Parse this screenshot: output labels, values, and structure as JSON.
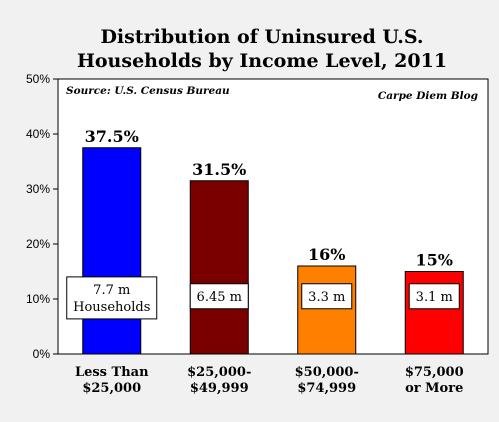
{
  "chart_data": {
    "type": "bar",
    "title_lines": [
      "Distribution of Uninsured U.S.",
      "Households by Income Level, 2011"
    ],
    "source_note": "Source: U.S. Census Bureau",
    "credit_note": "Carpe Diem Blog",
    "categories": [
      [
        "Less Than",
        "$25,000"
      ],
      [
        "$25,000-",
        "$49,999"
      ],
      [
        "$50,000-",
        "$74,999"
      ],
      [
        "$75,000",
        "or More"
      ]
    ],
    "values": [
      37.5,
      31.5,
      16,
      15
    ],
    "value_labels": [
      "37.5%",
      "31.5%",
      "16%",
      "15%"
    ],
    "household_labels": [
      [
        "7.7 m",
        "Households"
      ],
      [
        "6.45 m"
      ],
      [
        "3.3 m"
      ],
      [
        "3.1 m"
      ]
    ],
    "bar_colors": [
      "#0000ff",
      "#7a0000",
      "#ff8000",
      "#ff0000"
    ],
    "ylim": [
      0,
      50
    ],
    "yticks": [
      0,
      10,
      20,
      30,
      40,
      50
    ],
    "ytick_labels": [
      "0%",
      "10%",
      "20%",
      "30%",
      "40%",
      "50%"
    ],
    "grid": false,
    "legend": "none"
  }
}
